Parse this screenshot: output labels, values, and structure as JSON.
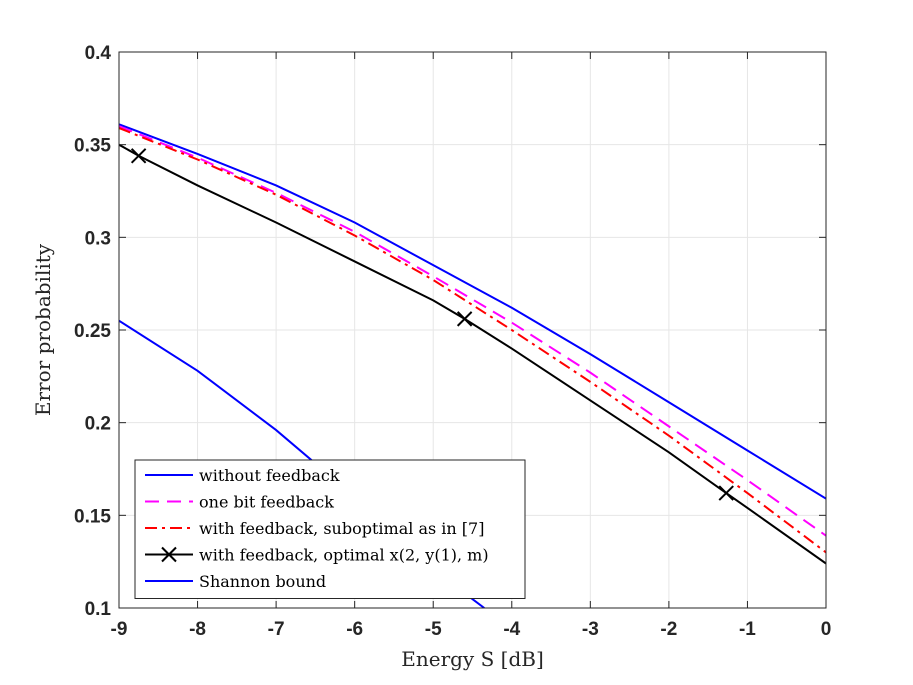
{
  "chart_data": {
    "type": "line",
    "xlabel": "Energy S [dB]",
    "ylabel": "Error probability",
    "xlim": [
      -9,
      0
    ],
    "ylim": [
      0.1,
      0.4
    ],
    "xticks": [
      -9,
      -8,
      -7,
      -6,
      -5,
      -4,
      -3,
      -2,
      -1,
      0
    ],
    "yticks": [
      0.1,
      0.15,
      0.2,
      0.25,
      0.3,
      0.35,
      0.4
    ],
    "xtick_labels": [
      "-9",
      "-8",
      "-7",
      "-6",
      "-5",
      "-4",
      "-3",
      "-2",
      "-1",
      "0"
    ],
    "ytick_labels": [
      "0.1",
      "0.15",
      "0.2",
      "0.25",
      "0.3",
      "0.35",
      "0.4"
    ],
    "grid": true,
    "legend_position": "bottom-left",
    "series": [
      {
        "name": "without feedback",
        "color": "#0000ff",
        "style": "solid",
        "marker": "none",
        "x": [
          -9,
          -8,
          -7,
          -6,
          -5,
          -4,
          -3,
          -2,
          -1,
          0
        ],
        "y": [
          0.361,
          0.345,
          0.328,
          0.308,
          0.285,
          0.262,
          0.237,
          0.211,
          0.185,
          0.159
        ]
      },
      {
        "name": "one bit feedback",
        "color": "#ff00ff",
        "style": "dashed",
        "marker": "none",
        "x": [
          -9,
          -8,
          -7,
          -6,
          -5,
          -4,
          -3,
          -2,
          -1,
          0
        ],
        "y": [
          0.36,
          0.343,
          0.324,
          0.303,
          0.279,
          0.254,
          0.227,
          0.198,
          0.169,
          0.139
        ]
      },
      {
        "name": "with feedback, suboptimal as in [7]",
        "color": "#ff0000",
        "style": "dashdot",
        "marker": "none",
        "x": [
          -9,
          -8,
          -7,
          -6,
          -5,
          -4,
          -3,
          -2,
          -1,
          0
        ],
        "y": [
          0.359,
          0.342,
          0.323,
          0.301,
          0.277,
          0.25,
          0.222,
          0.193,
          0.162,
          0.13
        ]
      },
      {
        "name": "with feedback, optimal x(2, y(1), m)",
        "color": "#000000",
        "style": "solid",
        "marker": "x",
        "x": [
          -9,
          -8.75,
          -8,
          -7,
          -6,
          -5,
          -4.6,
          -4,
          -3,
          -2,
          -1.27,
          -1,
          0
        ],
        "y": [
          0.35,
          0.344,
          0.328,
          0.308,
          0.287,
          0.266,
          0.256,
          0.24,
          0.212,
          0.184,
          0.162,
          0.154,
          0.124
        ],
        "marker_x": [
          -8.75,
          -4.6,
          -1.27
        ],
        "marker_y": [
          0.344,
          0.256,
          0.162
        ]
      },
      {
        "name": "Shannon bound",
        "color": "#0000ff",
        "style": "solid",
        "marker": "none",
        "x": [
          -9,
          -8,
          -7,
          -6,
          -5,
          -4.6,
          -4.35
        ],
        "y": [
          0.255,
          0.228,
          0.196,
          0.16,
          0.123,
          0.108,
          0.1
        ]
      }
    ]
  }
}
